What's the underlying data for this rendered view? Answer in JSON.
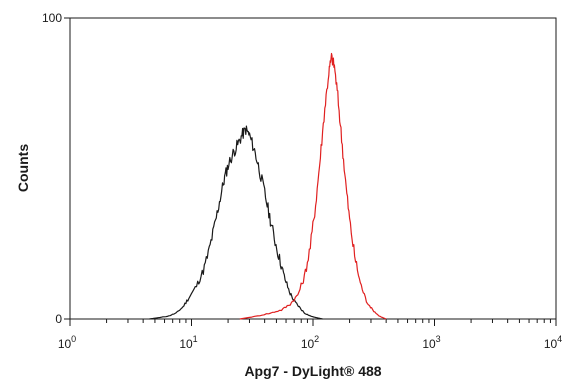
{
  "chart_data": {
    "type": "line",
    "title": "",
    "xlabel": "Apg7 - DyLight® 488",
    "ylabel": "Counts",
    "x_scale": "log",
    "xlim": [
      1,
      10000
    ],
    "ylim": [
      0,
      100
    ],
    "x_ticks": [
      {
        "value": 1,
        "base": "10",
        "exp": "0"
      },
      {
        "value": 10,
        "base": "10",
        "exp": "1"
      },
      {
        "value": 100,
        "base": "10",
        "exp": "2"
      },
      {
        "value": 1000,
        "base": "10",
        "exp": "3"
      },
      {
        "value": 10000,
        "base": "10",
        "exp": "4"
      }
    ],
    "y_ticks": [
      {
        "value": 0,
        "label": "0"
      },
      {
        "value": 100,
        "label": "100"
      }
    ],
    "grid": false,
    "legend": "none",
    "series": [
      {
        "color": "#1a1a1a",
        "points": [
          [
            4.5,
            0
          ],
          [
            5.5,
            0.5
          ],
          [
            6.5,
            1
          ],
          [
            7.5,
            2
          ],
          [
            8.5,
            4
          ],
          [
            9.5,
            7
          ],
          [
            11,
            11
          ],
          [
            12.5,
            16
          ],
          [
            14,
            23
          ],
          [
            15.5,
            31
          ],
          [
            17,
            39
          ],
          [
            18.5,
            46
          ],
          [
            20,
            51
          ],
          [
            22,
            55
          ],
          [
            24,
            58
          ],
          [
            26,
            61
          ],
          [
            28,
            63
          ],
          [
            30,
            61
          ],
          [
            33,
            56
          ],
          [
            36,
            50
          ],
          [
            40,
            42
          ],
          [
            44,
            34
          ],
          [
            48,
            27
          ],
          [
            53,
            20
          ],
          [
            58,
            14
          ],
          [
            64,
            9
          ],
          [
            70,
            6
          ],
          [
            77,
            4
          ],
          [
            85,
            2
          ],
          [
            95,
            1
          ],
          [
            105,
            0.5
          ],
          [
            120,
            0
          ]
        ]
      },
      {
        "color": "#e02020",
        "points": [
          [
            25,
            0
          ],
          [
            35,
            1
          ],
          [
            45,
            2
          ],
          [
            55,
            3
          ],
          [
            65,
            5
          ],
          [
            75,
            8
          ],
          [
            85,
            14
          ],
          [
            95,
            24
          ],
          [
            105,
            38
          ],
          [
            115,
            54
          ],
          [
            125,
            70
          ],
          [
            135,
            82
          ],
          [
            142,
            87
          ],
          [
            150,
            84
          ],
          [
            160,
            74
          ],
          [
            172,
            60
          ],
          [
            185,
            46
          ],
          [
            200,
            33
          ],
          [
            220,
            21
          ],
          [
            245,
            12
          ],
          [
            275,
            6
          ],
          [
            310,
            3
          ],
          [
            350,
            1
          ],
          [
            400,
            0
          ]
        ]
      }
    ]
  }
}
